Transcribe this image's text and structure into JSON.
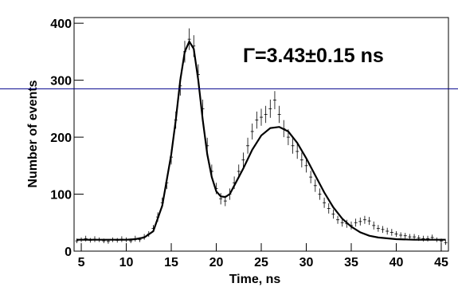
{
  "chart_data": {
    "type": "scatter",
    "annotation": "Γ=3.43±0.15 ns",
    "x_label": "Time, ns",
    "y_label": "Number of events",
    "xlim": [
      4.2,
      45.8
    ],
    "ylim": [
      0,
      410
    ],
    "xticks": [
      5,
      10,
      15,
      20,
      25,
      30,
      35,
      40,
      45
    ],
    "yticks": [
      0,
      100,
      200,
      300,
      400
    ],
    "hline": {
      "value": 285,
      "color": "#00008b"
    },
    "data": {
      "color": "#000000",
      "x": [
        4.5,
        5,
        5.5,
        6,
        6.5,
        7,
        7.5,
        8,
        8.5,
        9,
        9.5,
        10,
        10.5,
        11,
        11.5,
        12,
        12.5,
        13,
        13.5,
        14,
        14.5,
        15,
        15.5,
        16,
        16.5,
        17,
        17.5,
        18,
        18.5,
        19,
        19.5,
        20,
        20.5,
        21,
        21.5,
        22,
        22.5,
        23,
        23.5,
        24,
        24.5,
        25,
        25.5,
        26,
        26.5,
        27,
        27.5,
        28,
        28.5,
        29,
        29.5,
        30,
        30.5,
        31,
        31.5,
        32,
        32.5,
        33,
        33.5,
        34,
        34.5,
        35,
        35.5,
        36,
        36.5,
        37,
        37.5,
        38,
        38.5,
        39,
        39.5,
        40,
        40.5,
        41,
        41.5,
        42,
        42.5,
        43,
        43.5,
        44,
        44.5,
        45,
        45.5
      ],
      "values": [
        18,
        20,
        22,
        19,
        21,
        20,
        18,
        17,
        20,
        19,
        21,
        20,
        18,
        22,
        20,
        25,
        30,
        40,
        60,
        85,
        120,
        165,
        230,
        290,
        350,
        372,
        360,
        310,
        250,
        185,
        140,
        110,
        92,
        88,
        100,
        120,
        140,
        160,
        185,
        210,
        230,
        235,
        240,
        250,
        265,
        240,
        215,
        200,
        185,
        175,
        160,
        150,
        130,
        115,
        100,
        85,
        75,
        65,
        55,
        50,
        48,
        45,
        50,
        52,
        55,
        53,
        45,
        40,
        38,
        35,
        33,
        30,
        28,
        27,
        25,
        25,
        23,
        22,
        22,
        24,
        20,
        18,
        15
      ],
      "errors": [
        4,
        4,
        5,
        4,
        5,
        4,
        4,
        4,
        4,
        4,
        5,
        4,
        4,
        5,
        4,
        5,
        5,
        6,
        8,
        9,
        11,
        13,
        15,
        17,
        19,
        19,
        19,
        18,
        16,
        14,
        12,
        10,
        10,
        9,
        10,
        11,
        12,
        13,
        14,
        14,
        15,
        15,
        15,
        16,
        16,
        15,
        15,
        14,
        14,
        13,
        13,
        12,
        11,
        11,
        10,
        9,
        9,
        8,
        7,
        7,
        7,
        7,
        7,
        7,
        7,
        7,
        7,
        6,
        6,
        6,
        6,
        5,
        5,
        5,
        5,
        5,
        5,
        5,
        5,
        5,
        4,
        4,
        4
      ]
    },
    "fit": {
      "color": "#000000",
      "x": [
        4.5,
        6,
        8,
        10,
        11,
        12,
        13,
        14,
        15,
        15.5,
        16,
        16.5,
        17,
        17.5,
        18,
        18.5,
        19,
        19.5,
        20,
        20.5,
        21,
        21.5,
        22,
        23,
        24,
        25,
        26,
        27,
        28,
        29,
        30,
        31,
        32,
        33,
        34,
        35,
        36,
        37,
        38,
        40,
        42,
        45.5
      ],
      "values": [
        20,
        20,
        20,
        20,
        21,
        24,
        35,
        80,
        170,
        230,
        300,
        350,
        368,
        355,
        300,
        230,
        170,
        130,
        105,
        96,
        95,
        100,
        115,
        145,
        178,
        203,
        216,
        218,
        210,
        190,
        163,
        133,
        103,
        77,
        57,
        43,
        33,
        27,
        24,
        21,
        20,
        20
      ]
    }
  }
}
